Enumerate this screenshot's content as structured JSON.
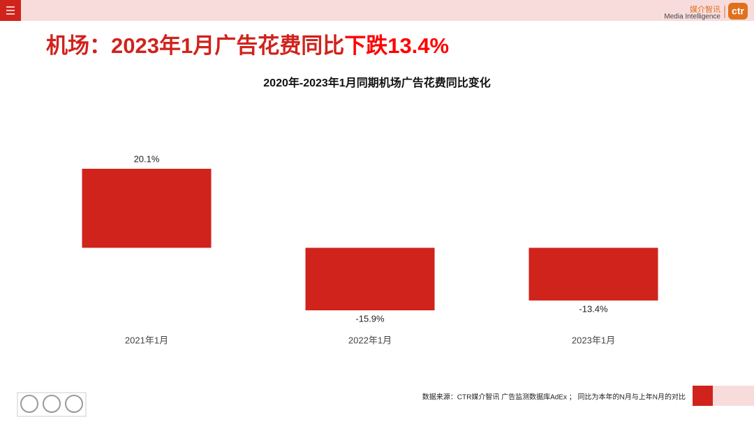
{
  "headline": {
    "prefix": "机场：2023年1月广告花费同比",
    "highlight": "下跌13.4%"
  },
  "logo": {
    "cn": "媒介智讯",
    "en": "Media Intelligence",
    "mark": "ctr"
  },
  "source": "数据来源：CTR媒介智讯 广告监测数据库AdEx ； 同比为本年的N月与上年N月的对比",
  "chart_data": {
    "type": "bar",
    "title": "2020年-2023年1月同期机场广告花费同比变化",
    "categories": [
      "2021年1月",
      "2022年1月",
      "2023年1月"
    ],
    "values": [
      20.1,
      -15.9,
      -13.4
    ],
    "value_labels": [
      "20.1%",
      "-15.9%",
      "-13.4%"
    ],
    "color": "#d0231c"
  }
}
